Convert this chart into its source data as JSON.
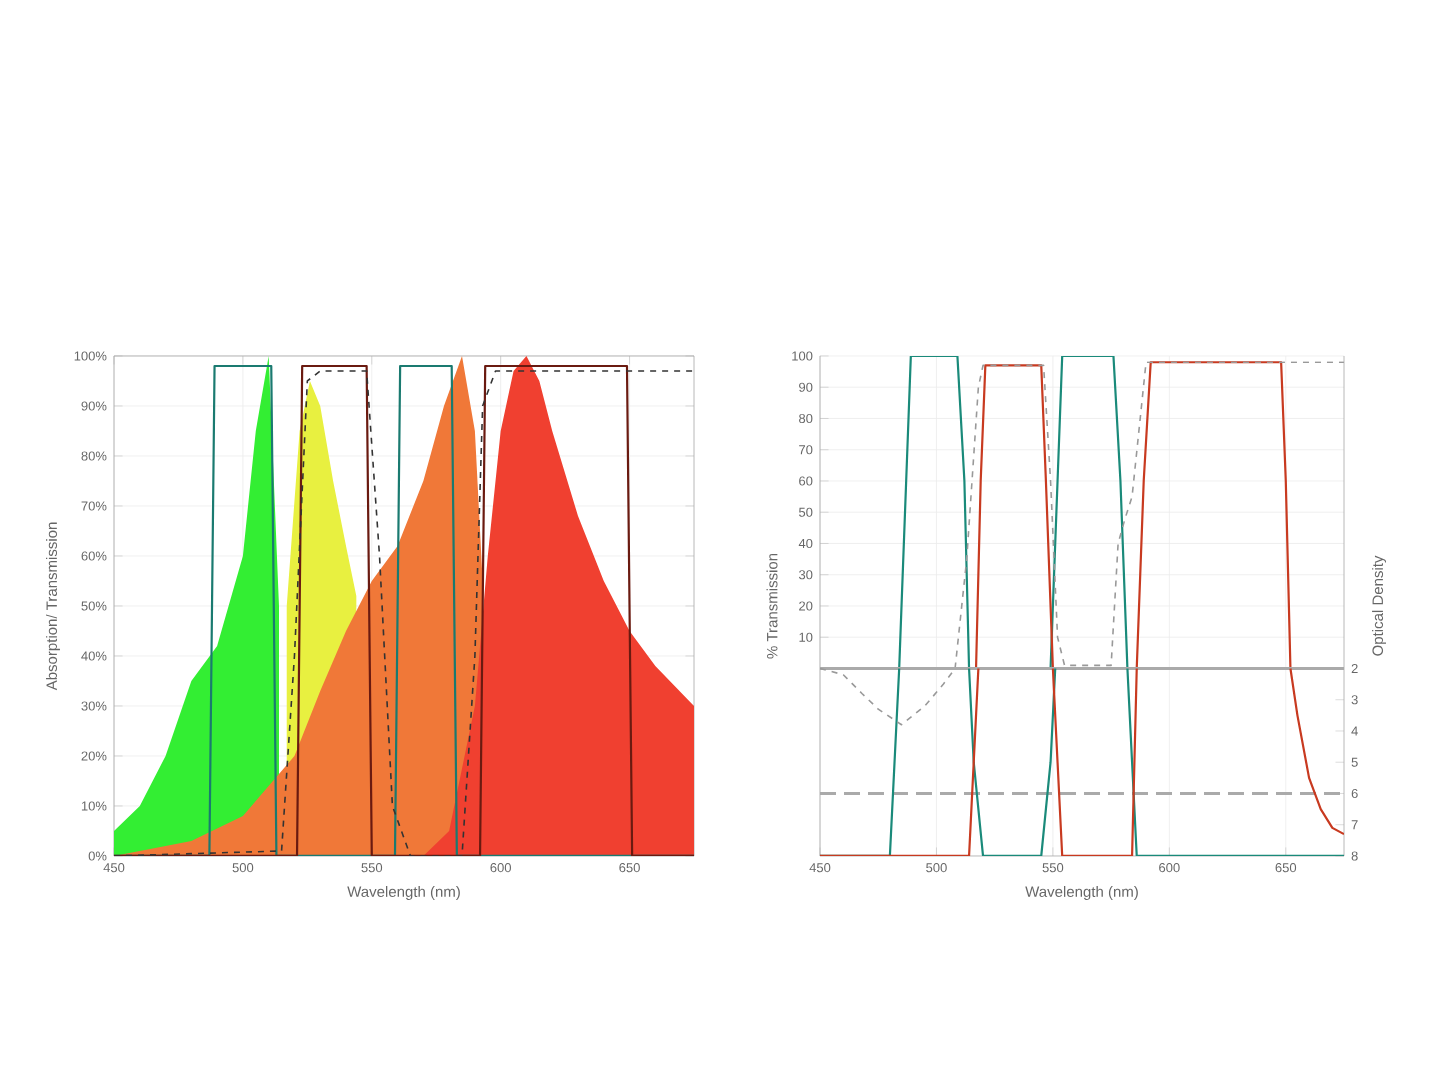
{
  "chart_data": [
    {
      "type": "area",
      "xlabel": "Wavelength (nm)",
      "ylabel": "Absorption/ Transmission",
      "xlim": [
        450,
        675
      ],
      "xticks": [
        450,
        500,
        550,
        600,
        650
      ],
      "ylim": [
        0,
        100
      ],
      "yticks": [
        {
          "value": 0,
          "label": "0%"
        },
        {
          "value": 10,
          "label": "10%"
        },
        {
          "value": 20,
          "label": "20%"
        },
        {
          "value": 30,
          "label": "30%"
        },
        {
          "value": 40,
          "label": "40%"
        },
        {
          "value": 50,
          "label": "50%"
        },
        {
          "value": 60,
          "label": "60%"
        },
        {
          "value": 70,
          "label": "70%"
        },
        {
          "value": 80,
          "label": "80%"
        },
        {
          "value": 90,
          "label": "90%"
        },
        {
          "value": 100,
          "label": "100%"
        }
      ],
      "grid": true,
      "series": [
        {
          "color": "#33ee33",
          "x": [
            450,
            460,
            470,
            480,
            490,
            500,
            505,
            510,
            514
          ],
          "values": [
            5,
            10,
            20,
            35,
            42,
            60,
            85,
            100,
            50
          ]
        },
        {
          "color": "#e8f040",
          "x": [
            517,
            522,
            526,
            530,
            535,
            540,
            544
          ],
          "values": [
            50,
            85,
            95,
            90,
            75,
            62,
            52
          ]
        },
        {
          "color": "#f07838",
          "x": [
            450,
            480,
            500,
            520,
            530,
            540,
            550,
            560,
            570,
            578,
            585,
            590,
            593
          ],
          "values": [
            0,
            3,
            8,
            20,
            33,
            45,
            55,
            62,
            75,
            90,
            100,
            85,
            55
          ]
        },
        {
          "color": "#f04030",
          "x": [
            560,
            570,
            580,
            590,
            595,
            600,
            605,
            610,
            615,
            620,
            630,
            640,
            650,
            660,
            675
          ],
          "values": [
            0,
            0,
            5,
            30,
            60,
            85,
            97,
            100,
            95,
            85,
            68,
            55,
            45,
            38,
            30
          ]
        },
        {
          "type": "line",
          "color": "#1a7a70",
          "line_style": "solid",
          "x": [
            450,
            487,
            489,
            511,
            513,
            559,
            561,
            581,
            583,
            675
          ],
          "values": [
            0,
            0,
            98,
            98,
            0,
            0,
            98,
            98,
            0,
            0
          ]
        },
        {
          "type": "line",
          "color": "#6a1a10",
          "line_style": "solid",
          "x": [
            450,
            521,
            523,
            548,
            550,
            592,
            594,
            649,
            651,
            675
          ],
          "values": [
            0,
            0,
            98,
            98,
            0,
            0,
            98,
            98,
            0,
            0
          ]
        },
        {
          "type": "line",
          "color": "#333333",
          "line_style": "dashed",
          "x": [
            450,
            515,
            520,
            525,
            530,
            548,
            553,
            558,
            565,
            585,
            590,
            593,
            598,
            675
          ],
          "values": [
            0,
            1,
            40,
            95,
            97,
            97,
            60,
            10,
            0,
            0,
            40,
            90,
            97,
            97
          ]
        }
      ]
    },
    {
      "type": "line",
      "xlabel": "Wavelength (nm)",
      "ylabel": "% Transmission",
      "y2label": "Optical Density",
      "xlim": [
        450,
        675
      ],
      "xticks": [
        450,
        500,
        550,
        600,
        650
      ],
      "ylim": [
        -60,
        100
      ],
      "yticks": [
        10,
        20,
        30,
        40,
        50,
        60,
        70,
        80,
        90,
        100
      ],
      "y2lim": [
        8,
        -8
      ],
      "y2ticks": [
        2,
        3,
        4,
        5,
        6,
        7,
        8
      ],
      "grid": true,
      "ref_lines": [
        {
          "axis": "y2",
          "value": 2,
          "color": "#aaaaaa",
          "line_style": "solid"
        },
        {
          "axis": "y2",
          "value": 6,
          "color": "#aaaaaa",
          "line_style": "dashed"
        }
      ],
      "series": [
        {
          "color": "#1a8a7a",
          "line_style": "solid",
          "x": [
            484,
            487,
            489,
            509,
            512,
            514,
            530,
            549,
            552,
            554,
            576,
            579,
            582
          ],
          "values": [
            0,
            60,
            100,
            100,
            60,
            0,
            null,
            0,
            60,
            100,
            100,
            60,
            0
          ]
        },
        {
          "color": "#1a8a7a",
          "line_style": "solid",
          "axis": "y2",
          "x": [
            450,
            480,
            482,
            484,
            500,
            514,
            516,
            520,
            545,
            549,
            551,
            565,
            582,
            584,
            586,
            675
          ],
          "values": [
            8,
            8,
            5,
            2,
            null,
            2,
            5,
            8,
            8,
            5,
            2,
            null,
            2,
            5,
            8,
            8
          ]
        },
        {
          "color": "#c83a20",
          "line_style": "solid",
          "x": [
            517,
            519,
            521,
            545,
            547,
            550,
            570,
            586,
            589,
            592,
            648,
            650,
            652
          ],
          "values": [
            0,
            60,
            97,
            97,
            60,
            0,
            null,
            0,
            60,
            98,
            98,
            60,
            0
          ]
        },
        {
          "color": "#c83a20",
          "line_style": "solid",
          "axis": "y2",
          "x": [
            450,
            514,
            516,
            518,
            530,
            550,
            552,
            554,
            584,
            586,
            620,
            652,
            655,
            660,
            665,
            670,
            675
          ],
          "values": [
            8,
            8,
            5,
            2,
            null,
            2,
            5,
            8,
            8,
            2,
            null,
            2,
            3.5,
            5.5,
            6.5,
            7.1,
            7.3
          ]
        },
        {
          "color": "#999999",
          "line_style": "dashed",
          "x": [
            508,
            513,
            518,
            520,
            546,
            549,
            552,
            555,
            575,
            578,
            581,
            584,
            590,
            675
          ],
          "values": [
            0,
            35,
            90,
            97,
            97,
            60,
            10,
            1,
            1,
            40,
            48,
            55,
            98,
            98
          ]
        },
        {
          "color": "#999999",
          "line_style": "dashed",
          "axis": "y2",
          "x": [
            450,
            460,
            468,
            475,
            485,
            495,
            503,
            508
          ],
          "values": [
            2,
            2.2,
            2.8,
            3.3,
            3.8,
            3.2,
            2.5,
            2
          ]
        }
      ]
    }
  ]
}
